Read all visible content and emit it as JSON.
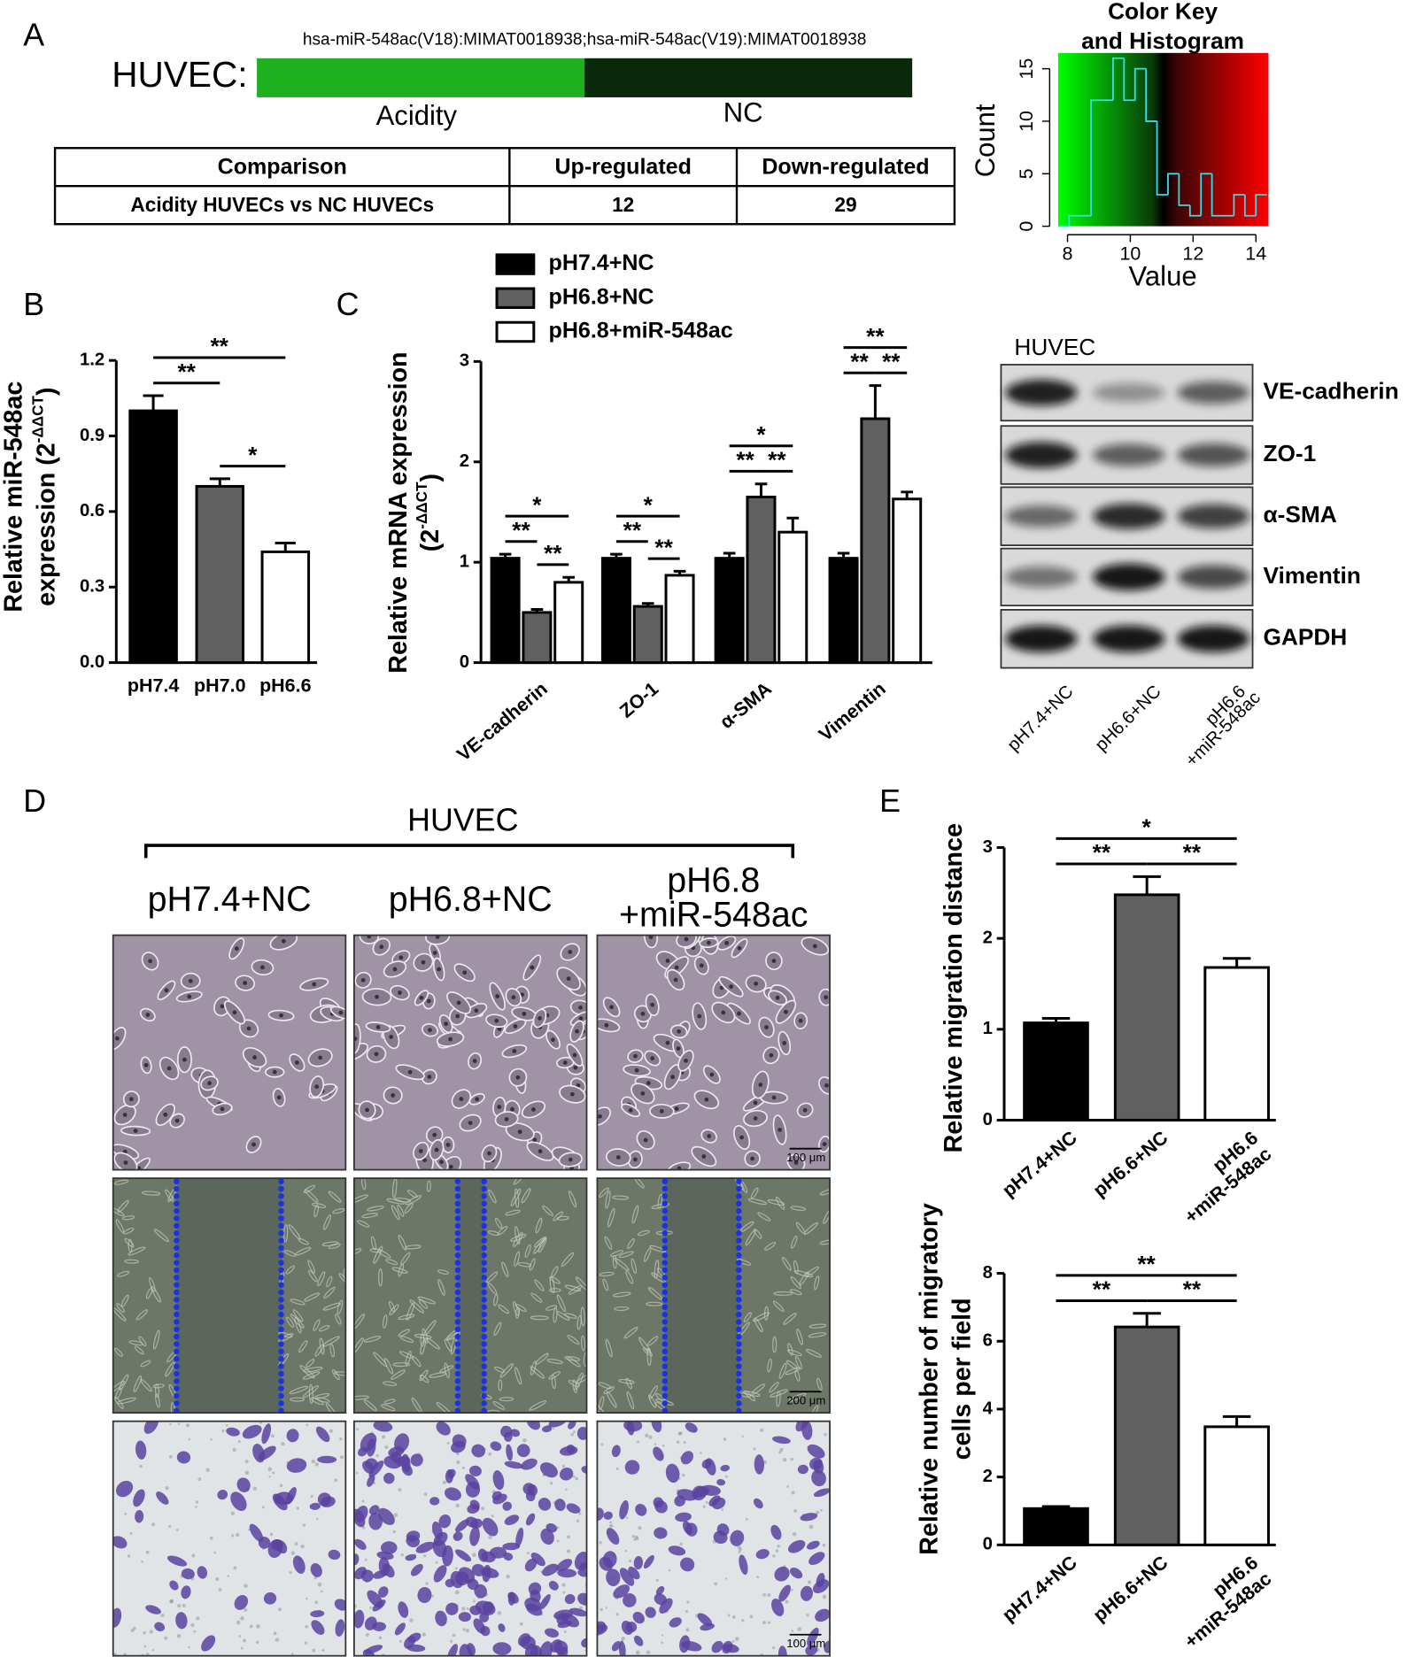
{
  "panel_labels": [
    "A",
    "B",
    "C",
    "D",
    "E"
  ],
  "panel_a": {
    "mirna": "hsa-miR-548ac(V18):MIMAT0018938;hsa-miR-548ac(V19):MIMAT0018938",
    "cell_line": "HUVEC:",
    "groups": [
      "Acidity",
      "NC"
    ],
    "colors": [
      "#1eb01e",
      "#0b2a0b"
    ],
    "table": {
      "header": [
        "Comparison",
        "Up-regulated",
        "Down-regulated"
      ],
      "rows": [
        [
          "Acidity HUVECs vs NC HUVECs",
          "12",
          "29"
        ]
      ]
    }
  },
  "chart_data": [
    {
      "type": "histogram",
      "title": [
        "Color Key",
        "and Histogram"
      ],
      "xlabel": "Value",
      "ylabel": "Count",
      "bins": [
        7.7,
        8.05,
        8.4,
        8.75,
        9.1,
        9.45,
        9.8,
        10.15,
        10.5,
        10.85,
        11.2,
        11.55,
        11.9,
        12.25,
        12.6,
        12.95,
        13.3,
        13.65,
        14.0,
        14.35
      ],
      "values": [
        0,
        1,
        1,
        12,
        12,
        16,
        12,
        15,
        10,
        3,
        5,
        2,
        1,
        5,
        1,
        1,
        3,
        1,
        3
      ],
      "color": "#33ddee",
      "xlim": [
        7.7,
        14.4
      ],
      "xticks": [
        8,
        10,
        12,
        14
      ],
      "ylim": [
        0,
        16.5
      ],
      "yticks": [
        0,
        5,
        10,
        15
      ]
    },
    {
      "type": "bar",
      "ylabel": [
        "Relative miR-548ac",
        "expression (2"
      ],
      "ylabel_sup": "-ΔΔCT",
      "ylabel_end": ")",
      "categories": [
        "pH7.4",
        "pH7.0",
        "pH6.6"
      ],
      "values": [
        1.0,
        0.7,
        0.44
      ],
      "errors": [
        0.06,
        0.03,
        0.035
      ],
      "colors": [
        "#000000",
        "#606060",
        "#ffffff"
      ],
      "ylim": [
        0,
        1.2
      ],
      "yticks": [
        {
          "value": 0,
          "label": "0.0"
        },
        0.3,
        0.6,
        0.9,
        1.2
      ],
      "significance": [
        {
          "from": 0,
          "to": 1,
          "label": "**"
        },
        {
          "from": 1,
          "to": 2,
          "label": "*"
        },
        {
          "from": 0,
          "to": 2,
          "label": "**"
        }
      ]
    },
    {
      "type": "grouped_bar",
      "ylabel": [
        "Relative mRNA expression",
        "(2"
      ],
      "ylabel_sup": "-ΔΔCT",
      "ylabel_end": ")",
      "categories": [
        "VE-cadherin",
        "ZO-1",
        "α-SMA",
        "Vimentin"
      ],
      "series": [
        {
          "name": "pH7.4+NC",
          "color": "#000000",
          "values": [
            1.04,
            1.04,
            1.04,
            1.04
          ],
          "errors": [
            0.04,
            0.04,
            0.05,
            0.05
          ]
        },
        {
          "name": "pH6.8+NC",
          "color": "#606060",
          "values": [
            0.5,
            0.56,
            1.65,
            2.43
          ],
          "errors": [
            0.03,
            0.03,
            0.13,
            0.33
          ]
        },
        {
          "name": "pH6.8+miR-548ac",
          "color": "#ffffff",
          "values": [
            0.8,
            0.87,
            1.3,
            1.63
          ],
          "errors": [
            0.05,
            0.04,
            0.14,
            0.07
          ]
        }
      ],
      "ylim": [
        0,
        3
      ],
      "yticks": [
        0,
        1,
        2,
        3
      ],
      "significance": [
        [
          {
            "from": 0,
            "to": 1,
            "label": "**"
          },
          {
            "from": 1,
            "to": 2,
            "label": "**"
          },
          {
            "from": 0,
            "to": 2,
            "label": "*"
          }
        ],
        [
          {
            "from": 0,
            "to": 1,
            "label": "**"
          },
          {
            "from": 1,
            "to": 2,
            "label": "**"
          },
          {
            "from": 0,
            "to": 2,
            "label": "*"
          }
        ],
        [
          {
            "from": 0,
            "to": 1,
            "label": "**"
          },
          {
            "from": 1,
            "to": 2,
            "label": "**"
          },
          {
            "from": 0,
            "to": 2,
            "label": "*"
          }
        ],
        [
          {
            "from": 0,
            "to": 1,
            "label": "**"
          },
          {
            "from": 1,
            "to": 2,
            "label": "**"
          },
          {
            "from": 0,
            "to": 2,
            "label": "**"
          }
        ]
      ]
    },
    {
      "type": "bar",
      "ylabel": [
        "Relative migration distance"
      ],
      "categories": [
        "pH7.4+NC",
        "pH6.6+NC",
        "pH6.6\n+miR-548ac"
      ],
      "values": [
        1.07,
        2.48,
        1.68
      ],
      "errors": [
        0.05,
        0.2,
        0.1
      ],
      "colors": [
        "#000000",
        "#606060",
        "#ffffff"
      ],
      "ylim": [
        0,
        3
      ],
      "yticks": [
        0,
        1,
        2,
        3
      ],
      "significance": [
        {
          "from": 0,
          "to": 1,
          "label": "**"
        },
        {
          "from": 1,
          "to": 2,
          "label": "**"
        },
        {
          "from": 0,
          "to": 2,
          "label": "*"
        }
      ]
    },
    {
      "type": "bar",
      "ylabel": [
        "Relative number of migratory",
        "cells per field"
      ],
      "categories": [
        "pH7.4+NC",
        "pH6.6+NC",
        "pH6.6\n+miR-548ac"
      ],
      "values": [
        1.07,
        6.42,
        3.48
      ],
      "errors": [
        0.06,
        0.4,
        0.3
      ],
      "colors": [
        "#000000",
        "#606060",
        "#ffffff"
      ],
      "ylim": [
        0,
        8
      ],
      "yticks": [
        0,
        2,
        4,
        6,
        8
      ],
      "significance": [
        {
          "from": 0,
          "to": 1,
          "label": "**"
        },
        {
          "from": 1,
          "to": 2,
          "label": "**"
        },
        {
          "from": 0,
          "to": 2,
          "label": "**"
        }
      ]
    }
  ],
  "western_blot": {
    "title": "HUVEC",
    "proteins": [
      "VE-cadherin",
      "ZO-1",
      "α-SMA",
      "Vimentin",
      "GAPDH"
    ],
    "lanes": [
      [
        "pH7.4+NC"
      ],
      [
        "pH6.6+NC"
      ],
      [
        "pH6.6",
        "+miR-548ac"
      ]
    ]
  },
  "panel_d": {
    "title": "HUVEC",
    "columns": [
      [
        "pH7.4+NC"
      ],
      [
        "pH6.8+NC"
      ],
      [
        "pH6.8",
        "+miR-548ac"
      ]
    ],
    "scale_bars": [
      "100 μm",
      "200 μm",
      "100 μm"
    ]
  }
}
